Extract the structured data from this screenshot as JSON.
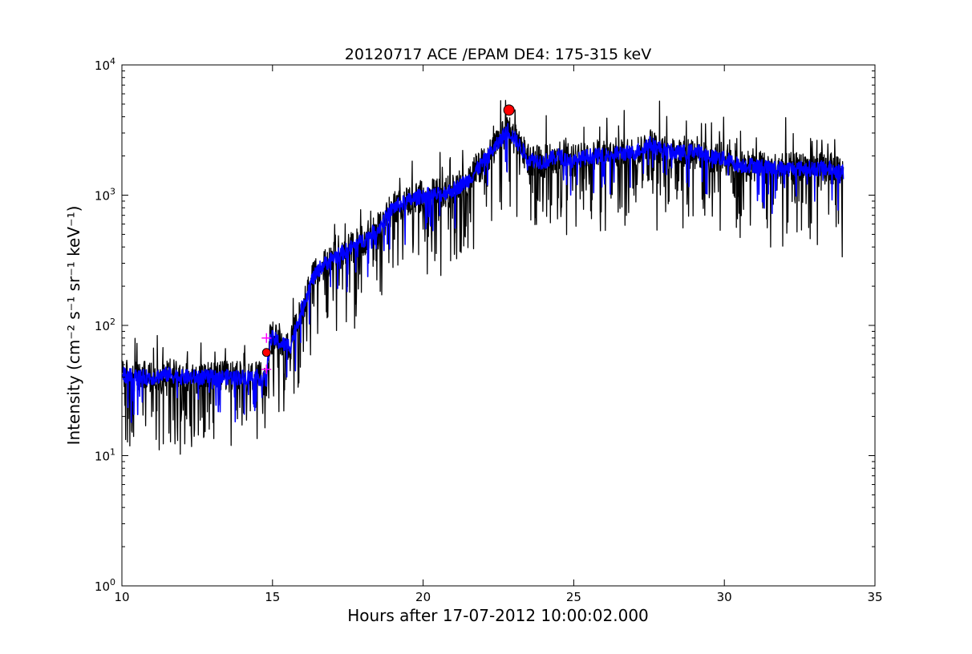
{
  "chart_data": {
    "type": "line",
    "title": "20120717 ACE /EPAM DE4: 175-315 keV",
    "xlabel": "Hours after 17-07-2012 10:00:02.000",
    "ylabel": "Intensity (cm⁻² s⁻¹ sr⁻¹ keV⁻¹)",
    "yscale": "log",
    "xlim": [
      10,
      35
    ],
    "ylim": [
      1,
      10000
    ],
    "x_ticks": [
      10,
      15,
      20,
      25,
      30,
      35
    ],
    "y_ticks": [
      {
        "value": 1,
        "base": "10",
        "exp": "0"
      },
      {
        "value": 10,
        "base": "10",
        "exp": "1"
      },
      {
        "value": 100,
        "base": "10",
        "exp": "2"
      },
      {
        "value": 1000,
        "base": "10",
        "exp": "3"
      },
      {
        "value": 10000,
        "base": "10",
        "exp": "4"
      }
    ],
    "grid": false,
    "legend": "none",
    "series": [
      {
        "color": "#000000",
        "style": "raw, noisy with frequent downward dips",
        "x": [
          10.0,
          10.5,
          11.0,
          11.5,
          12.0,
          12.5,
          13.0,
          13.5,
          14.0,
          14.5,
          14.8,
          14.9,
          15.0,
          15.3,
          15.6,
          15.8,
          16.0,
          16.3,
          16.6,
          17.0,
          17.5,
          18.0,
          18.5,
          19.0,
          19.5,
          20.0,
          20.5,
          21.0,
          21.5,
          22.0,
          22.5,
          22.8,
          23.0,
          23.5,
          24.0,
          24.5,
          25.0,
          25.5,
          26.0,
          26.5,
          27.0,
          27.5,
          28.0,
          28.5,
          29.0,
          29.5,
          30.0,
          30.5,
          31.0,
          31.5,
          32.0,
          32.5,
          33.0,
          33.5,
          33.95
        ],
        "y": [
          42,
          40,
          40,
          42,
          40,
          40,
          40,
          40,
          40,
          40,
          38,
          75,
          80,
          72,
          70,
          100,
          140,
          220,
          280,
          330,
          380,
          450,
          550,
          800,
          900,
          1000,
          1000,
          1100,
          1300,
          1800,
          2500,
          3200,
          2800,
          1900,
          1800,
          2000,
          1800,
          2000,
          2000,
          2100,
          2100,
          2500,
          2200,
          2100,
          2200,
          2000,
          1900,
          1700,
          1700,
          1600,
          1600,
          1600,
          1600,
          1600,
          1500
        ]
      },
      {
        "color": "#0000ff",
        "style": "smoothed",
        "x": [
          10.0,
          10.5,
          11.0,
          11.5,
          12.0,
          12.5,
          13.0,
          13.5,
          14.0,
          14.5,
          14.8,
          14.9,
          15.0,
          15.3,
          15.6,
          15.8,
          16.0,
          16.3,
          16.6,
          17.0,
          17.5,
          18.0,
          18.5,
          19.0,
          19.5,
          20.0,
          20.5,
          21.0,
          21.5,
          22.0,
          22.5,
          22.8,
          23.0,
          23.5,
          24.0,
          24.5,
          25.0,
          25.5,
          26.0,
          26.5,
          27.0,
          27.5,
          28.0,
          28.5,
          29.0,
          29.5,
          30.0,
          30.5,
          31.0,
          31.5,
          32.0,
          32.5,
          33.0,
          33.5,
          33.95
        ],
        "y": [
          42,
          40,
          40,
          42,
          40,
          40,
          40,
          40,
          40,
          40,
          38,
          75,
          80,
          72,
          70,
          100,
          140,
          220,
          280,
          330,
          380,
          450,
          550,
          800,
          900,
          1000,
          1000,
          1100,
          1300,
          1800,
          2500,
          3200,
          2800,
          1900,
          1800,
          2000,
          1800,
          2000,
          2000,
          2100,
          2100,
          2500,
          2200,
          2100,
          2200,
          2000,
          1900,
          1700,
          1700,
          1600,
          1600,
          1600,
          1600,
          1600,
          1500
        ]
      }
    ],
    "markers": [
      {
        "x": 14.8,
        "y": 62,
        "shape": "circle",
        "color": "#ff0000",
        "size": "small"
      },
      {
        "x": 22.85,
        "y": 4500,
        "shape": "circle",
        "color": "#ff0000",
        "size": "large"
      }
    ],
    "crosshairs": [
      {
        "x": 14.8,
        "y": 80,
        "color": "#ff00ff"
      },
      {
        "x": 14.8,
        "y": 46,
        "color": "#ff00ff"
      }
    ]
  }
}
